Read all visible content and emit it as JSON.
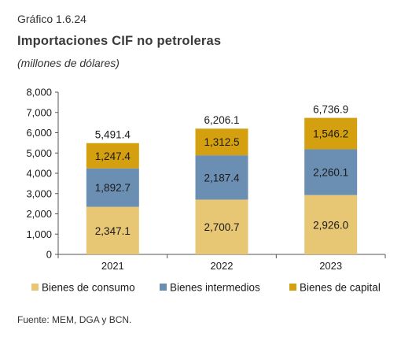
{
  "header": {
    "label": "Gráfico 1.6.24",
    "title": "Importaciones CIF no petroleras",
    "subtitle": "(millones de dólares)"
  },
  "source": "Fuente: MEM, DGA y BCN.",
  "colors": {
    "Bienes de consumo": "#e8c774",
    "Bienes intermedios": "#6b8fb3",
    "Bienes de capital": "#d4a010"
  },
  "chart_data": {
    "type": "bar",
    "stacked": true,
    "categories": [
      "2021",
      "2022",
      "2023"
    ],
    "series": [
      {
        "name": "Bienes de consumo",
        "values": [
          2347.1,
          2700.7,
          2926.0
        ],
        "labels": [
          "2,347.1",
          "2,700.7",
          "2,926.0"
        ]
      },
      {
        "name": "Bienes intermedios",
        "values": [
          1892.7,
          2187.4,
          2260.1
        ],
        "labels": [
          "1,892.7",
          "2,187.4",
          "2,260.1"
        ]
      },
      {
        "name": "Bienes de capital",
        "values": [
          1247.4,
          1312.5,
          1546.2
        ],
        "labels": [
          "1,247.4",
          "1,312.5",
          "1,546.2"
        ]
      }
    ],
    "totals": [
      5491.4,
      6206.1,
      6736.9
    ],
    "total_labels": [
      "5,491.4",
      "6,206.1",
      "6,736.9"
    ],
    "ylim": [
      0,
      8000
    ],
    "yticks": [
      0,
      1000,
      2000,
      3000,
      4000,
      5000,
      6000,
      7000,
      8000
    ],
    "ytick_labels": [
      "0",
      "1,000",
      "2,000",
      "3,000",
      "4,000",
      "5,000",
      "6,000",
      "7,000",
      "8,000"
    ],
    "grid": false,
    "legend": "bottom"
  }
}
